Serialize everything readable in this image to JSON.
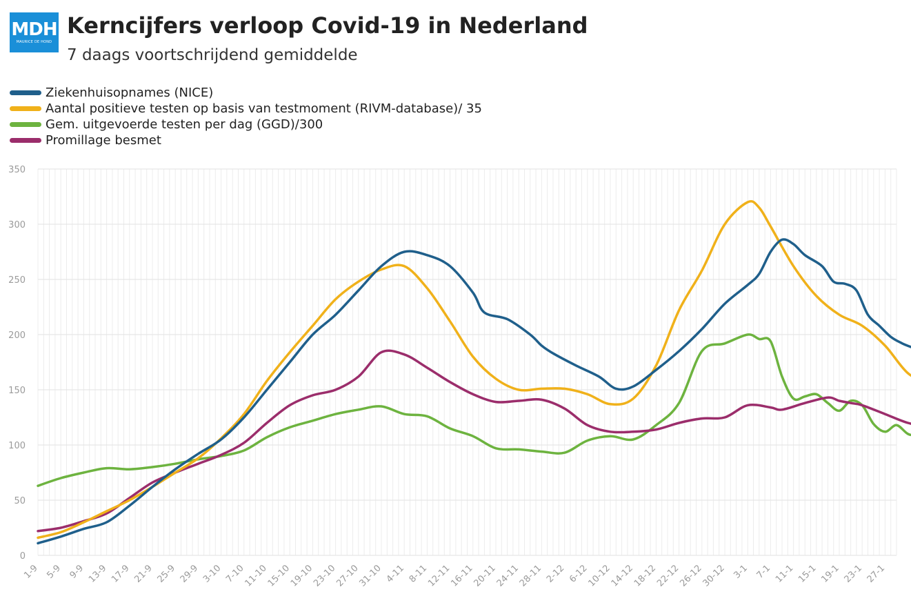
{
  "logo": {
    "text": "MDH",
    "subtext": "MAURICE DE HOND"
  },
  "title": "Kerncijfers verloop Covid-19 in Nederland",
  "subtitle": "7 daags voortschrijdend gemiddelde",
  "legend": [
    {
      "label": "Ziekenhuisopnames (NICE)",
      "color": "#1f5f8b"
    },
    {
      "label": "Aantal positieve testen op basis van testmoment (RIVM-database)/ 35",
      "color": "#f0b11a"
    },
    {
      "label": "Gem. uitgevoerde testen per dag (GGD)/300",
      "color": "#6db33f"
    },
    {
      "label": "Promillage besmet",
      "color": "#9b2d6b"
    }
  ],
  "chart_data": {
    "type": "line",
    "title": "Kerncijfers verloop Covid-19 in Nederland",
    "subtitle": "7 daags voortschrijdend gemiddelde",
    "x_start": "1-9",
    "x_count": 150,
    "x_ticks": [
      "1-9",
      "5-9",
      "9-9",
      "13-9",
      "17-9",
      "21-9",
      "25-9",
      "29-9",
      "3-10",
      "7-10",
      "11-10",
      "15-10",
      "19-10",
      "23-10",
      "27-10",
      "31-10",
      "4-11",
      "8-11",
      "12-11",
      "16-11",
      "20-11",
      "24-11",
      "28-11",
      "2-12",
      "6-12",
      "10-12",
      "14-12",
      "18-12",
      "22-12",
      "26-12",
      "30-12",
      "3-1",
      "7-1",
      "11-1",
      "15-1",
      "19-1",
      "23-1",
      "27-1"
    ],
    "ylim": [
      0,
      350
    ],
    "y_ticks": [
      0,
      50,
      100,
      150,
      200,
      250,
      300,
      350
    ],
    "grid": true,
    "series": [
      {
        "name": "Ziekenhuisopnames (NICE)",
        "color": "#1f5f8b",
        "points": [
          [
            0,
            11
          ],
          [
            4,
            17
          ],
          [
            8,
            24
          ],
          [
            12,
            30
          ],
          [
            16,
            45
          ],
          [
            20,
            62
          ],
          [
            24,
            78
          ],
          [
            28,
            92
          ],
          [
            32,
            105
          ],
          [
            36,
            125
          ],
          [
            40,
            150
          ],
          [
            44,
            175
          ],
          [
            48,
            200
          ],
          [
            52,
            218
          ],
          [
            56,
            240
          ],
          [
            60,
            262
          ],
          [
            64,
            275
          ],
          [
            68,
            272
          ],
          [
            72,
            262
          ],
          [
            76,
            238
          ],
          [
            78,
            220
          ],
          [
            82,
            214
          ],
          [
            86,
            200
          ],
          [
            88,
            190
          ],
          [
            90,
            183
          ],
          [
            94,
            172
          ],
          [
            98,
            162
          ],
          [
            101,
            151
          ],
          [
            104,
            153
          ],
          [
            108,
            168
          ],
          [
            112,
            185
          ],
          [
            116,
            205
          ],
          [
            120,
            228
          ],
          [
            124,
            245
          ],
          [
            126,
            255
          ],
          [
            128,
            275
          ],
          [
            130,
            286
          ],
          [
            132,
            282
          ],
          [
            134,
            272
          ],
          [
            137,
            262
          ],
          [
            139,
            248
          ],
          [
            141,
            246
          ],
          [
            143,
            240
          ],
          [
            145,
            218
          ],
          [
            147,
            208
          ],
          [
            149,
            198
          ],
          [
            151,
            192
          ],
          [
            154,
            185
          ],
          [
            156,
            174
          ]
        ]
      },
      {
        "name": "Aantal positieve testen op basis van testmoment (RIVM-database)/ 35",
        "color": "#f0b11a",
        "points": [
          [
            0,
            16
          ],
          [
            4,
            21
          ],
          [
            8,
            30
          ],
          [
            12,
            40
          ],
          [
            16,
            50
          ],
          [
            20,
            62
          ],
          [
            24,
            75
          ],
          [
            28,
            88
          ],
          [
            32,
            106
          ],
          [
            36,
            128
          ],
          [
            40,
            158
          ],
          [
            44,
            184
          ],
          [
            48,
            208
          ],
          [
            52,
            232
          ],
          [
            56,
            248
          ],
          [
            60,
            259
          ],
          [
            64,
            262
          ],
          [
            68,
            242
          ],
          [
            72,
            212
          ],
          [
            76,
            180
          ],
          [
            80,
            160
          ],
          [
            84,
            150
          ],
          [
            88,
            151
          ],
          [
            92,
            151
          ],
          [
            96,
            146
          ],
          [
            100,
            137
          ],
          [
            104,
            142
          ],
          [
            108,
            172
          ],
          [
            112,
            222
          ],
          [
            116,
            258
          ],
          [
            120,
            300
          ],
          [
            124,
            320
          ],
          [
            126,
            315
          ],
          [
            128,
            298
          ],
          [
            132,
            262
          ],
          [
            136,
            235
          ],
          [
            140,
            218
          ],
          [
            144,
            208
          ],
          [
            148,
            190
          ],
          [
            152,
            165
          ],
          [
            156,
            155
          ],
          [
            160,
            147
          ],
          [
            164,
            140
          ],
          [
            166,
            134
          ]
        ]
      },
      {
        "name": "Gem. uitgevoerde testen per dag (GGD)/300",
        "color": "#6db33f",
        "points": [
          [
            0,
            63
          ],
          [
            4,
            70
          ],
          [
            8,
            75
          ],
          [
            12,
            79
          ],
          [
            16,
            78
          ],
          [
            20,
            80
          ],
          [
            24,
            83
          ],
          [
            28,
            87
          ],
          [
            32,
            90
          ],
          [
            36,
            95
          ],
          [
            40,
            107
          ],
          [
            44,
            116
          ],
          [
            48,
            122
          ],
          [
            52,
            128
          ],
          [
            56,
            132
          ],
          [
            60,
            135
          ],
          [
            64,
            128
          ],
          [
            68,
            126
          ],
          [
            72,
            115
          ],
          [
            76,
            108
          ],
          [
            80,
            97
          ],
          [
            84,
            96
          ],
          [
            88,
            94
          ],
          [
            92,
            93
          ],
          [
            96,
            104
          ],
          [
            100,
            108
          ],
          [
            104,
            105
          ],
          [
            108,
            118
          ],
          [
            112,
            138
          ],
          [
            116,
            185
          ],
          [
            120,
            192
          ],
          [
            124,
            200
          ],
          [
            126,
            196
          ],
          [
            128,
            194
          ],
          [
            130,
            162
          ],
          [
            132,
            142
          ],
          [
            134,
            144
          ],
          [
            136,
            146
          ],
          [
            138,
            138
          ],
          [
            140,
            131
          ],
          [
            142,
            140
          ],
          [
            144,
            136
          ],
          [
            146,
            119
          ],
          [
            148,
            112
          ],
          [
            150,
            118
          ],
          [
            152,
            110
          ],
          [
            154,
            108
          ],
          [
            156,
            107
          ]
        ]
      },
      {
        "name": "Promillage besmet",
        "color": "#9b2d6b",
        "points": [
          [
            0,
            22
          ],
          [
            4,
            25
          ],
          [
            8,
            31
          ],
          [
            12,
            38
          ],
          [
            16,
            52
          ],
          [
            20,
            66
          ],
          [
            24,
            75
          ],
          [
            28,
            83
          ],
          [
            32,
            91
          ],
          [
            36,
            102
          ],
          [
            40,
            120
          ],
          [
            44,
            136
          ],
          [
            48,
            145
          ],
          [
            52,
            150
          ],
          [
            56,
            162
          ],
          [
            60,
            184
          ],
          [
            64,
            182
          ],
          [
            68,
            170
          ],
          [
            72,
            157
          ],
          [
            76,
            146
          ],
          [
            80,
            139
          ],
          [
            84,
            140
          ],
          [
            88,
            141
          ],
          [
            92,
            133
          ],
          [
            96,
            118
          ],
          [
            100,
            112
          ],
          [
            104,
            112
          ],
          [
            108,
            114
          ],
          [
            112,
            120
          ],
          [
            116,
            124
          ],
          [
            120,
            125
          ],
          [
            124,
            136
          ],
          [
            128,
            134
          ],
          [
            130,
            132
          ],
          [
            134,
            138
          ],
          [
            138,
            143
          ],
          [
            140,
            140
          ],
          [
            142,
            138
          ],
          [
            144,
            136
          ],
          [
            148,
            128
          ],
          [
            152,
            120
          ],
          [
            156,
            116
          ],
          [
            158,
            116
          ]
        ]
      }
    ]
  }
}
